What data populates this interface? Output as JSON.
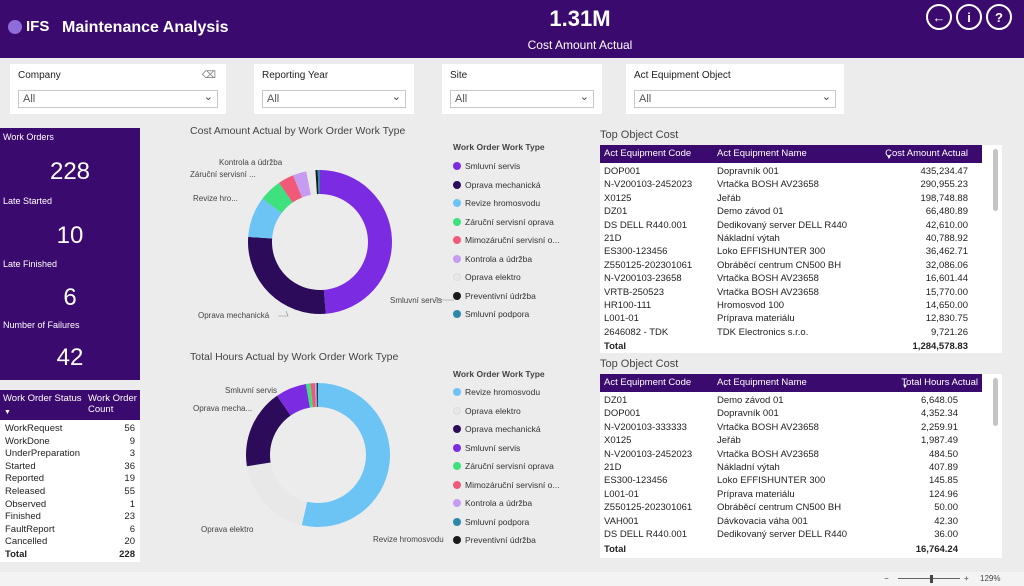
{
  "header": {
    "logo": "IFS",
    "title": "Maintenance Analysis",
    "kpi_value": "1.31M",
    "kpi_label": "Cost Amount Actual",
    "back_icon": "back-arrow-icon",
    "info_icon": "info-icon",
    "help_icon": "help-icon"
  },
  "filters": [
    {
      "label": "Company",
      "value": "All"
    },
    {
      "label": "Reporting Year",
      "value": "All"
    },
    {
      "label": "Site",
      "value": "All"
    },
    {
      "label": "Act Equipment Object",
      "value": "All"
    }
  ],
  "kpis": {
    "work_orders_label": "Work Orders",
    "work_orders": "228",
    "late_started_label": "Late Started",
    "late_started": "10",
    "late_finished_label": "Late Finished",
    "late_finished": "6",
    "failures_label": "Number of Failures",
    "failures": "42"
  },
  "status_table": {
    "col1": "Work Order Status",
    "col2": "Work Order Count",
    "rows": [
      {
        "status": "WorkRequest",
        "count": "56"
      },
      {
        "status": "WorkDone",
        "count": "9"
      },
      {
        "status": "UnderPreparation",
        "count": "3"
      },
      {
        "status": "Started",
        "count": "36"
      },
      {
        "status": "Reported",
        "count": "19"
      },
      {
        "status": "Released",
        "count": "55"
      },
      {
        "status": "Observed",
        "count": "1"
      },
      {
        "status": "Finished",
        "count": "23"
      },
      {
        "status": "FaultReport",
        "count": "6"
      },
      {
        "status": "Cancelled",
        "count": "20"
      }
    ],
    "total_label": "Total",
    "total": "228"
  },
  "chart_data": [
    {
      "type": "pie",
      "title": "Cost Amount Actual by Work Order Work Type",
      "legend_title": "Work Order Work Type",
      "legend_position": "right",
      "series": [
        {
          "name": "Smluvní servis",
          "value": 48,
          "color": "#7b2be2"
        },
        {
          "name": "Oprava mechanická",
          "value": 27,
          "color": "#2b0b5a"
        },
        {
          "name": "Revize hromosvodu",
          "value": 9,
          "color": "#6cc4f5"
        },
        {
          "name": "Záruční servisní oprava",
          "value": 5,
          "color": "#3fe07e"
        },
        {
          "name": "Mimozáruční servisní o...",
          "value": 3.5,
          "color": "#f05a78"
        },
        {
          "name": "Kontrola a údržba",
          "value": 3,
          "color": "#c59cf2"
        },
        {
          "name": "Oprava elektro",
          "value": 2,
          "color": "#e8e8e8"
        },
        {
          "name": "Preventivní údržba",
          "value": 0.5,
          "color": "#1a1a1a"
        },
        {
          "name": "Smluvní podpora",
          "value": 0.5,
          "color": "#2b8aa6"
        }
      ],
      "data_labels": [
        "Kontrola a údržba",
        "Záruční servisní ...",
        "Revize hro...",
        "Oprava mechanická",
        "Smluvní servis"
      ]
    },
    {
      "type": "pie",
      "title": "Total Hours Actual by Work Order Work Type",
      "legend_title": "Work Order Work Type",
      "legend_position": "right",
      "series": [
        {
          "name": "Revize hromosvodu",
          "value": 54,
          "color": "#6cc4f5"
        },
        {
          "name": "Oprava elektro",
          "value": 19,
          "color": "#e8e8e8"
        },
        {
          "name": "Oprava mechanická",
          "value": 18,
          "color": "#2b0b5a"
        },
        {
          "name": "Smluvní servis",
          "value": 7,
          "color": "#7b2be2"
        },
        {
          "name": "Záruční servisní oprava",
          "value": 1,
          "color": "#3fe07e"
        },
        {
          "name": "Mimozáruční servisní o...",
          "value": 1,
          "color": "#f05a78"
        },
        {
          "name": "Kontrola a údržba",
          "value": 0.3,
          "color": "#c59cf2"
        },
        {
          "name": "Smluvní podpora",
          "value": 0.2,
          "color": "#2b8aa6"
        },
        {
          "name": "Preventivní údržba",
          "value": 0.2,
          "color": "#1a1a1a"
        }
      ],
      "data_labels": [
        "Smluvní servis",
        "Oprava mecha...",
        "Oprava elektro",
        "Revize hromosvodu"
      ]
    },
    {
      "type": "table",
      "title": "Top Object Cost",
      "columns": [
        "Act Equipment Code",
        "Act Equipment Name",
        "Cost Amount Actual"
      ],
      "rows": [
        [
          "DOP001",
          "Dopravník 001",
          "435,234.47"
        ],
        [
          "N-V200103-2452023",
          "Vrtačka BOSH AV23658",
          "290,955.23"
        ],
        [
          "X0125",
          "Jeřáb",
          "198,748.88"
        ],
        [
          "DZ01",
          "Demo závod 01",
          "66,480.89"
        ],
        [
          "DS DELL R440.001",
          "Dedikovaný server DELL R440",
          "42,610.00"
        ],
        [
          "21D",
          "Nákladní výtah",
          "40,788.92"
        ],
        [
          "ES300-123456",
          "Loko EFFISHUNTER 300",
          "36,462.71"
        ],
        [
          "Z550125-202301061",
          "Obráběcí centrum CN500 BH",
          "32,086.06"
        ],
        [
          "N-V200103-23658",
          "Vrtačka BOSH AV23658",
          "16,601.44"
        ],
        [
          "VRTB-250523",
          "Vrtačka BOSH AV23658",
          "15,770.00"
        ],
        [
          "HR100-111",
          "Hromosvod 100",
          "14,650.00"
        ],
        [
          "L001-01",
          "Príprava materiálu",
          "12,830.75"
        ],
        [
          "2646082 - TDK",
          "TDK Electronics s.r.o.",
          "9,721.26"
        ]
      ],
      "total_label": "Total",
      "total": "1,284,578.83"
    },
    {
      "type": "table",
      "title": "Top Object Cost",
      "columns": [
        "Act Equipment Code",
        "Act Equipment Name",
        "Total Hours Actual"
      ],
      "rows": [
        [
          "DZ01",
          "Demo závod 01",
          "6,648.05"
        ],
        [
          "DOP001",
          "Dopravník 001",
          "4,352.34"
        ],
        [
          "N-V200103-333333",
          "Vrtačka BOSH AV23658",
          "2,259.91"
        ],
        [
          "X0125",
          "Jeřáb",
          "1,987.49"
        ],
        [
          "N-V200103-2452023",
          "Vrtačka BOSH AV23658",
          "484.50"
        ],
        [
          "21D",
          "Nákladní výtah",
          "407.89"
        ],
        [
          "ES300-123456",
          "Loko EFFISHUNTER 300",
          "145.85"
        ],
        [
          "L001-01",
          "Príprava materiálu",
          "124.96"
        ],
        [
          "Z550125-202301061",
          "Obráběcí centrum CN500 BH",
          "50.00"
        ],
        [
          "VAH001",
          "Dávkovacia váha 001",
          "42.30"
        ],
        [
          "DS DELL R440.001",
          "Dedikovaný server DELL R440",
          "36.00"
        ]
      ],
      "total_label": "Total",
      "total": "16,764.24"
    }
  ],
  "status_bar": {
    "zoom": "129%"
  }
}
